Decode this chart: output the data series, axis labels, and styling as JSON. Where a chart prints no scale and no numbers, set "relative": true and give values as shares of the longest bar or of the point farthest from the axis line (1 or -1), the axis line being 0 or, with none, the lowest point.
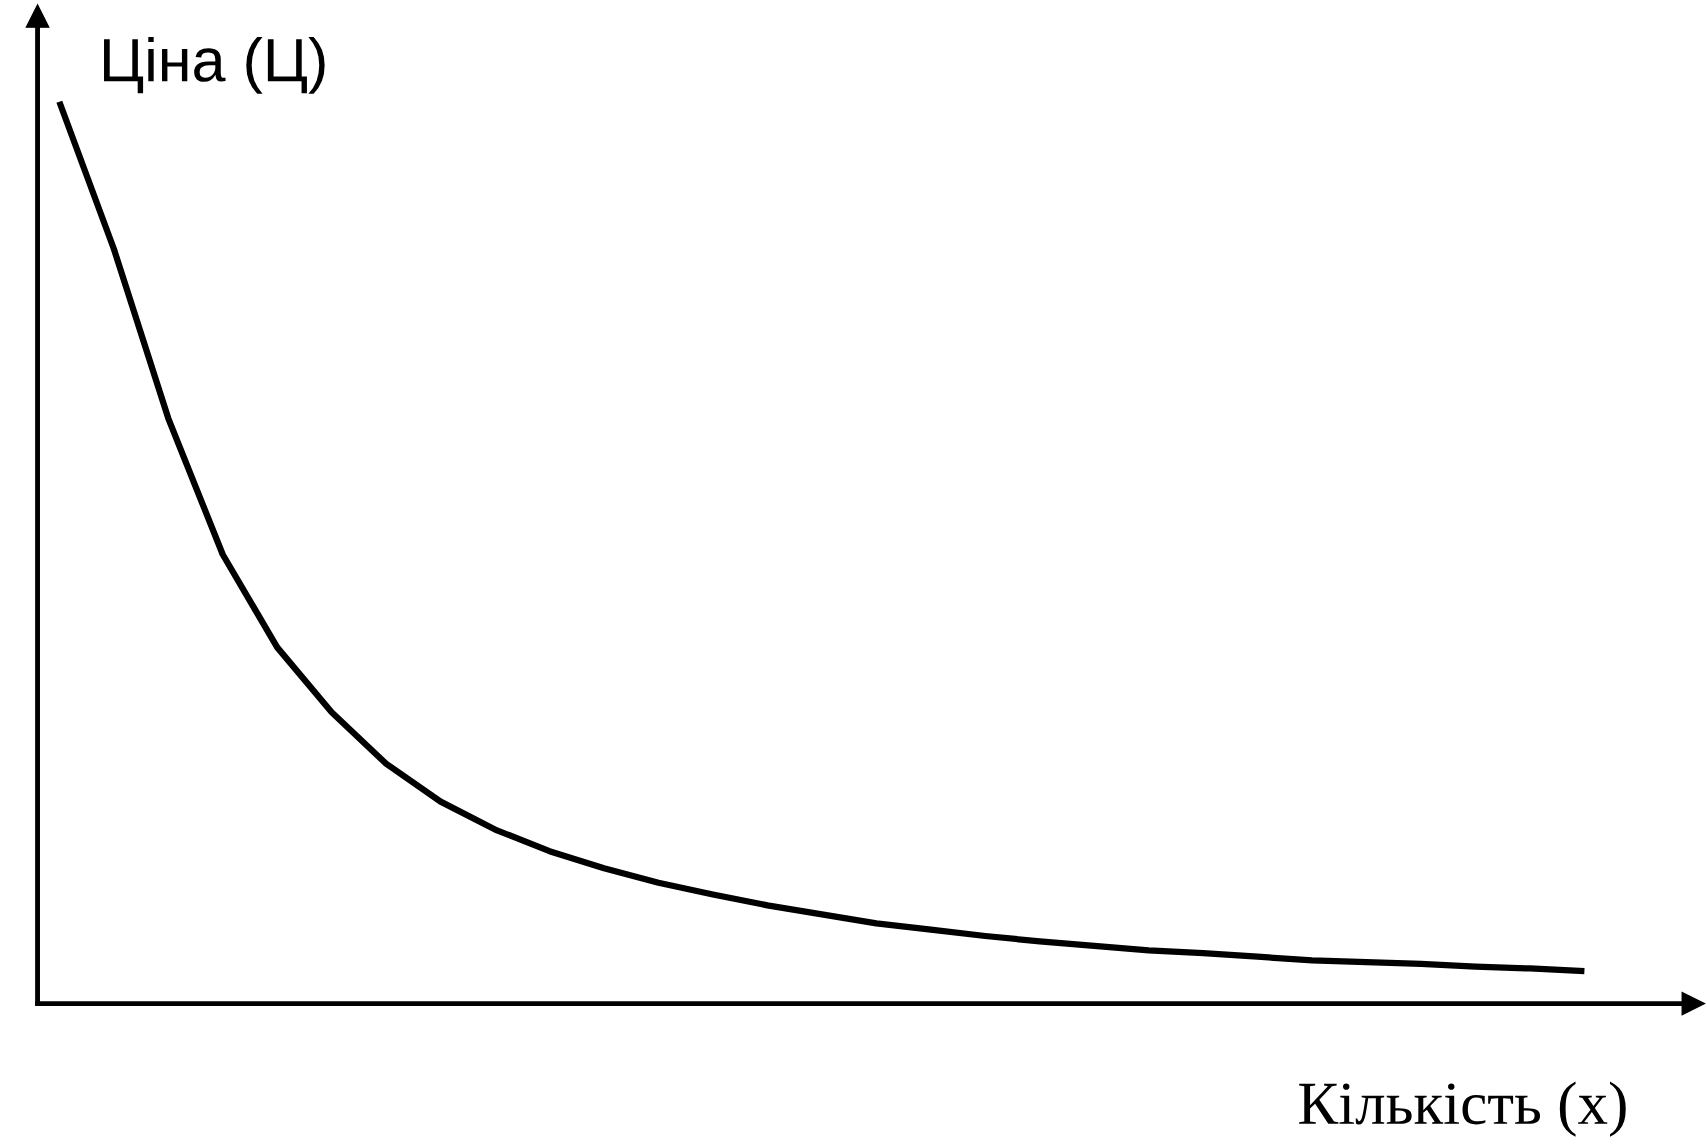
{
  "chart_data": {
    "type": "line",
    "ylabel": "Ціна (Ц)",
    "xlabel": "Кількість (x)",
    "relative": true,
    "color": "#000000",
    "line_style": "solid",
    "categories": [
      null,
      null,
      null,
      null,
      null,
      null,
      null,
      null,
      null,
      null,
      null,
      null,
      null,
      null,
      null,
      null,
      null,
      null,
      null,
      null,
      null,
      null,
      null,
      null,
      null,
      null,
      null,
      null,
      null
    ],
    "values": [
      1.0,
      0.837,
      0.649,
      0.498,
      0.395,
      0.323,
      0.266,
      0.224,
      0.193,
      0.169,
      0.15,
      0.134,
      0.121,
      0.109,
      0.099,
      0.089,
      0.082,
      0.075,
      0.069,
      0.064,
      0.059,
      0.056,
      0.052,
      0.048,
      0.046,
      0.044,
      0.041,
      0.039,
      0.036
    ]
  }
}
